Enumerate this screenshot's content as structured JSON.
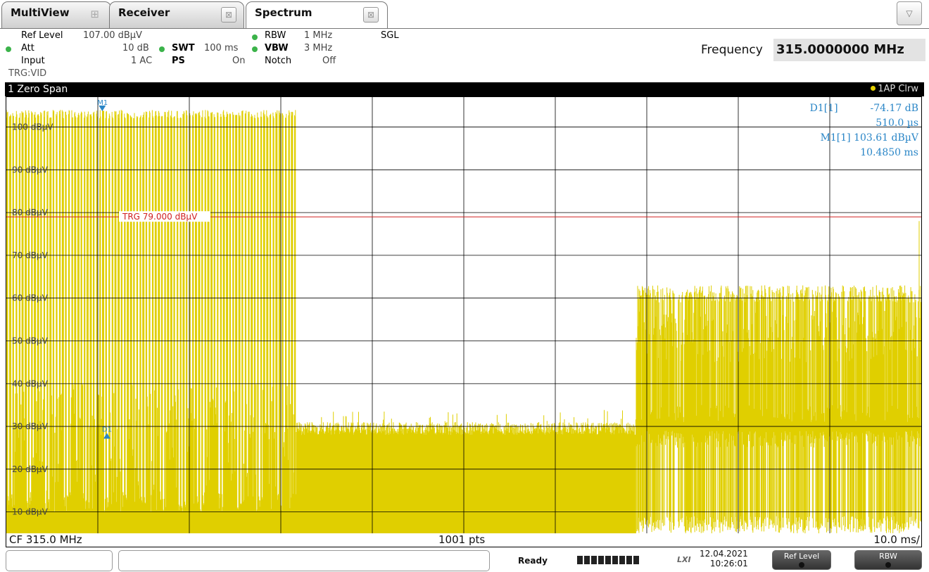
{
  "tabs": [
    {
      "label": "MultiView",
      "icon": "tile-icon",
      "active": false
    },
    {
      "label": "Receiver",
      "close": "⊠",
      "active": false
    },
    {
      "label": "Spectrum",
      "close": "⊠",
      "active": true
    }
  ],
  "tab_dropdown": "▽",
  "settings": {
    "ref_level_label": "Ref Level",
    "ref_level_value": "107.00 dBµV",
    "att_label": "Att",
    "att_value": "10 dB",
    "swt_label": "SWT",
    "swt_value": "100 ms",
    "input_label": "Input",
    "input_value": "1 AC",
    "ps_label": "PS",
    "ps_value": "On",
    "rbw_label": "RBW",
    "rbw_value": "1 MHz",
    "vbw_label": "VBW",
    "vbw_value": "3 MHz",
    "notch_label": "Notch",
    "notch_value": "Off",
    "sgl": "SGL",
    "trigger": "TRG:VID",
    "frequency_label": "Frequency",
    "frequency_value": "315.0000000 MHz"
  },
  "window": {
    "title": "1 Zero Span",
    "trace_info": "1AP Clrw"
  },
  "chart_data": {
    "type": "line",
    "title": "",
    "xlabel": "",
    "ylabel": "",
    "x_unit": "ms",
    "xlim": [
      0,
      100
    ],
    "ylim": [
      5,
      107
    ],
    "y_ticks": [
      {
        "value": 100,
        "label": "100 dBµV"
      },
      {
        "value": 90,
        "label": "90 dBµV"
      },
      {
        "value": 80,
        "label": "80 dBµV"
      },
      {
        "value": 70,
        "label": "70 dBµV"
      },
      {
        "value": 60,
        "label": "60 dBµV"
      },
      {
        "value": 50,
        "label": "50 dBµV"
      },
      {
        "value": 40,
        "label": "40 dBµV"
      },
      {
        "value": 30,
        "label": "30 dBµV"
      },
      {
        "value": 20,
        "label": "20 dBµV"
      },
      {
        "value": 10,
        "label": "10 dBµV"
      }
    ],
    "grid": true,
    "trace_color": "#e0cf00",
    "trace_segments": [
      {
        "start_ms": 0,
        "end_ms": 31.7,
        "floor_dbuv": 10,
        "high_dbuv": 104,
        "pattern": "on-off keyed burst"
      },
      {
        "start_ms": 31.7,
        "end_ms": 68.8,
        "floor_dbuv": 5,
        "high_dbuv": 31,
        "pattern": "noise floor"
      },
      {
        "start_ms": 68.8,
        "end_ms": 100,
        "floor_dbuv": 25,
        "high_dbuv": 63,
        "pattern": "noisy burst"
      }
    ],
    "trigger_line": {
      "value": 79,
      "label": "TRG 79.000 dBµV",
      "color": "#d02020"
    },
    "markers": [
      {
        "name": "M1",
        "x_ms": 10.485,
        "y_dbuv": 103.61,
        "color": "#2a86c7"
      },
      {
        "name": "D1",
        "x_ms": 10.995,
        "y_dbuv": 29.44,
        "color": "#2a86c7"
      }
    ],
    "marker_table": [
      {
        "label": "D1[1]",
        "value": "-74.17 dB",
        "sub": "510.0 µs"
      },
      {
        "label": "M1[1]",
        "value": "103.61 dBµV",
        "sub": "10.4850 ms"
      }
    ]
  },
  "footer": {
    "center_freq": "CF 315.0 MHz",
    "points": "1001 pts",
    "time_div": "10.0 ms/"
  },
  "status": {
    "ready": "Ready",
    "lxi": "LXI",
    "date": "12.04.2021",
    "time": "10:26:01",
    "softkeys": [
      "Ref Level",
      "RBW"
    ]
  }
}
